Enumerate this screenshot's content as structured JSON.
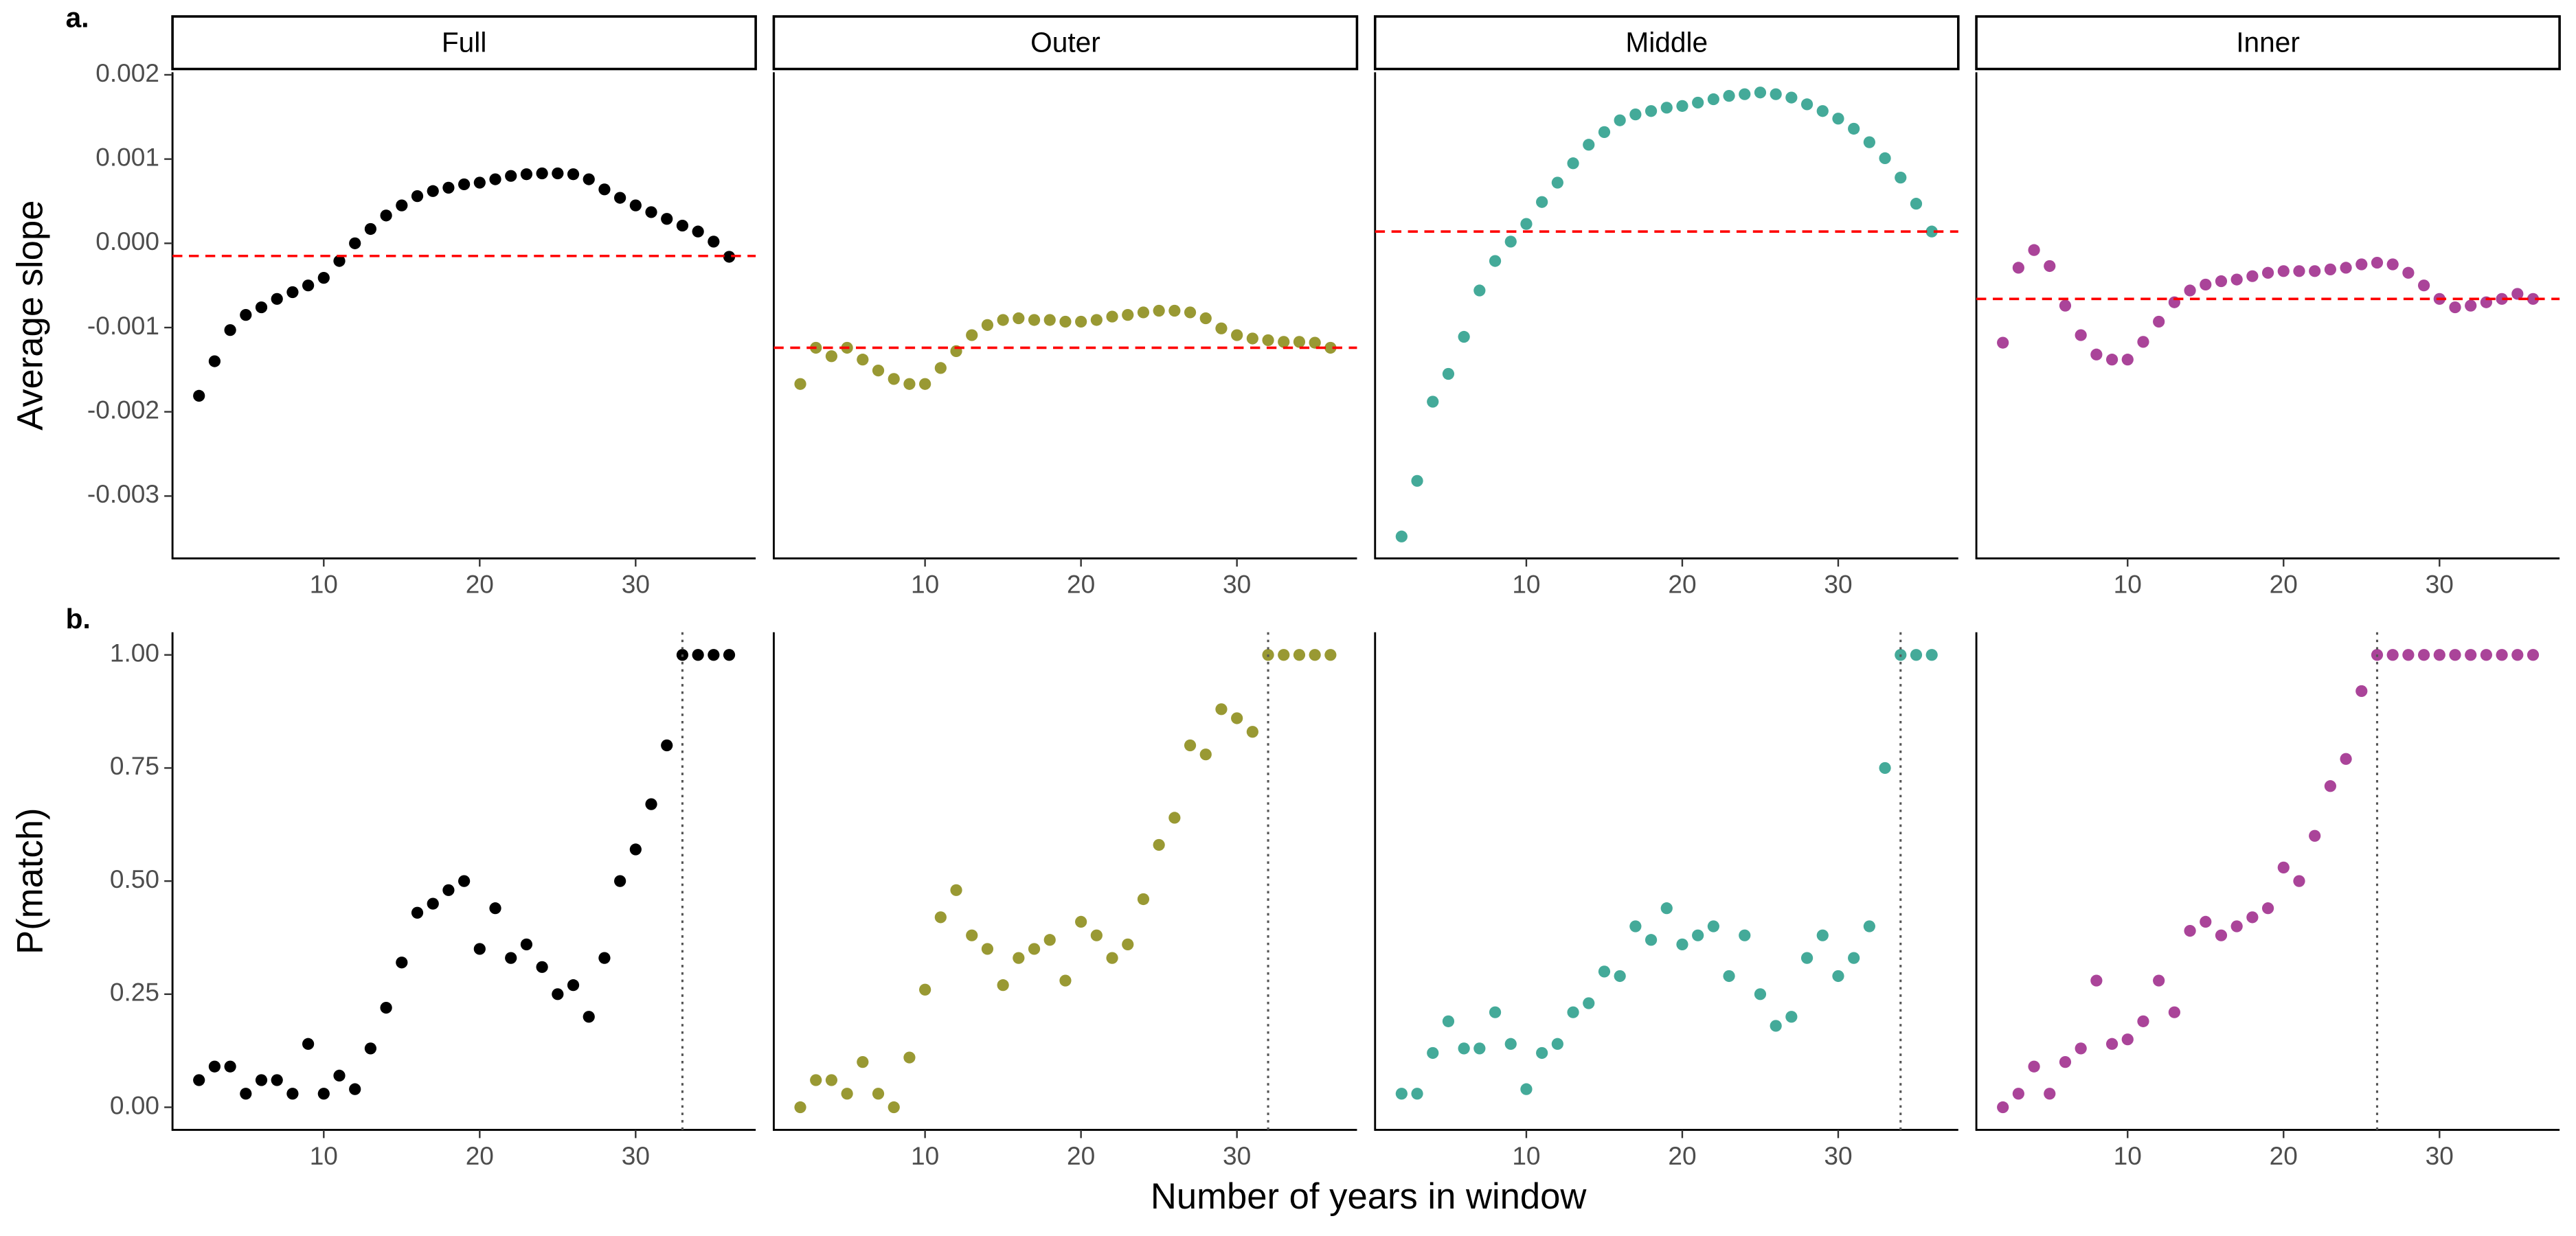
{
  "xlabel": "Number of years in window",
  "chart_data": [
    {
      "type": "scatter",
      "tag": "a.",
      "ylabel": "Average slope",
      "strip": "Full",
      "color": "#000000",
      "x": [
        2,
        3,
        4,
        5,
        6,
        7,
        8,
        9,
        10,
        11,
        12,
        13,
        14,
        15,
        16,
        17,
        18,
        19,
        20,
        21,
        22,
        23,
        24,
        25,
        26,
        27,
        28,
        29,
        30,
        31,
        32,
        33,
        34,
        35,
        36
      ],
      "values": [
        -0.00181,
        -0.0014,
        -0.00103,
        -0.00085,
        -0.00076,
        -0.00066,
        -0.00058,
        -0.0005,
        -0.00041,
        -0.00021,
        0,
        0.00017,
        0.00033,
        0.00045,
        0.00056,
        0.00062,
        0.00066,
        0.0007,
        0.00072,
        0.00076,
        0.0008,
        0.00082,
        0.00083,
        0.00083,
        0.00082,
        0.00076,
        0.00064,
        0.00054,
        0.00045,
        0.00037,
        0.00029,
        0.00021,
        0.00014,
        2e-05,
        -0.00016
      ],
      "hline": -0.00015,
      "ref_color": "#ff0000",
      "xlim": [
        0.3,
        37.7
      ],
      "ylim": [
        -0.00374,
        0.00203
      ],
      "xticks": [
        10,
        20,
        30
      ],
      "yticks": [
        {
          "value": 0.002,
          "label": "0.002"
        },
        {
          "value": 0.001,
          "label": "0.001"
        },
        {
          "value": 0,
          "label": "0.000"
        },
        {
          "value": -0.001,
          "label": "-0.001"
        },
        {
          "value": -0.002,
          "label": "-0.002"
        },
        {
          "value": -0.003,
          "label": "-0.003"
        }
      ]
    },
    {
      "type": "scatter",
      "strip": "Outer",
      "color": "#999933",
      "x": [
        2,
        3,
        4,
        5,
        6,
        7,
        8,
        9,
        10,
        11,
        12,
        13,
        14,
        15,
        16,
        17,
        18,
        19,
        20,
        21,
        22,
        23,
        24,
        25,
        26,
        27,
        28,
        29,
        30,
        31,
        32,
        33,
        34,
        35,
        36
      ],
      "values": [
        -0.00167,
        -0.00124,
        -0.00134,
        -0.00124,
        -0.00138,
        -0.00151,
        -0.00161,
        -0.00167,
        -0.00167,
        -0.00148,
        -0.00128,
        -0.00109,
        -0.00097,
        -0.00091,
        -0.00089,
        -0.00091,
        -0.00091,
        -0.00093,
        -0.00093,
        -0.00091,
        -0.00087,
        -0.00085,
        -0.00082,
        -0.0008,
        -0.0008,
        -0.00082,
        -0.00089,
        -0.00101,
        -0.00109,
        -0.00113,
        -0.00115,
        -0.00117,
        -0.00117,
        -0.00118,
        -0.00124
      ],
      "hline": -0.00124,
      "ref_color": "#ff0000",
      "xlim": [
        0.3,
        37.7
      ],
      "ylim": [
        -0.00374,
        0.00203
      ],
      "xticks": [
        10,
        20,
        30
      ]
    },
    {
      "type": "scatter",
      "strip": "Middle",
      "color": "#44aa99",
      "x": [
        2,
        3,
        4,
        5,
        6,
        7,
        8,
        9,
        10,
        11,
        12,
        13,
        14,
        15,
        16,
        17,
        18,
        19,
        20,
        21,
        22,
        23,
        24,
        25,
        26,
        27,
        28,
        29,
        30,
        31,
        32,
        33,
        34,
        35,
        36
      ],
      "values": [
        -0.00348,
        -0.00282,
        -0.00188,
        -0.00155,
        -0.00111,
        -0.00056,
        -0.00021,
        2e-05,
        0.00023,
        0.00049,
        0.00072,
        0.00095,
        0.00117,
        0.00132,
        0.00146,
        0.00153,
        0.00157,
        0.00161,
        0.00163,
        0.00167,
        0.00171,
        0.00175,
        0.00177,
        0.00179,
        0.00177,
        0.00173,
        0.00165,
        0.00157,
        0.00148,
        0.00136,
        0.0012,
        0.00101,
        0.00078,
        0.00047,
        0.00014
      ],
      "hline": 0.00014,
      "ref_color": "#ff0000",
      "xlim": [
        0.3,
        37.7
      ],
      "ylim": [
        -0.00374,
        0.00203
      ],
      "xticks": [
        10,
        20,
        30
      ]
    },
    {
      "type": "scatter",
      "strip": "Inner",
      "color": "#aa4499",
      "x": [
        2,
        3,
        4,
        5,
        6,
        7,
        8,
        9,
        10,
        11,
        12,
        13,
        14,
        15,
        16,
        17,
        18,
        19,
        20,
        21,
        22,
        23,
        24,
        25,
        26,
        27,
        28,
        29,
        30,
        31,
        32,
        33,
        34,
        35,
        36
      ],
      "values": [
        -0.00118,
        -0.00029,
        -8e-05,
        -0.00027,
        -0.00074,
        -0.00109,
        -0.00132,
        -0.00138,
        -0.00138,
        -0.00117,
        -0.00093,
        -0.0007,
        -0.00056,
        -0.00049,
        -0.00045,
        -0.00043,
        -0.00039,
        -0.00035,
        -0.00033,
        -0.00033,
        -0.00033,
        -0.00031,
        -0.00029,
        -0.00025,
        -0.00023,
        -0.00025,
        -0.00035,
        -0.0005,
        -0.00066,
        -0.00076,
        -0.00074,
        -0.0007,
        -0.00066,
        -0.0006,
        -0.00066
      ],
      "hline": -0.00066,
      "ref_color": "#ff0000",
      "xlim": [
        0.3,
        37.7
      ],
      "ylim": [
        -0.00374,
        0.00203
      ],
      "xticks": [
        10,
        20,
        30
      ]
    },
    {
      "type": "scatter",
      "tag": "b.",
      "ylabel": "P(match)",
      "color": "#000000",
      "x": [
        2,
        3,
        4,
        5,
        6,
        7,
        8,
        9,
        10,
        11,
        12,
        13,
        14,
        15,
        16,
        17,
        18,
        19,
        20,
        21,
        22,
        23,
        24,
        25,
        26,
        27,
        28,
        29,
        30,
        31,
        32,
        33,
        34,
        35,
        36
      ],
      "values": [
        0.06,
        0.09,
        0.09,
        0.03,
        0.06,
        0.06,
        0.03,
        0.14,
        0.03,
        0.07,
        0.04,
        0.13,
        0.22,
        0.32,
        0.43,
        0.45,
        0.48,
        0.5,
        0.35,
        0.44,
        0.33,
        0.36,
        0.31,
        0.25,
        0.27,
        0.2,
        0.33,
        0.5,
        0.57,
        0.67,
        0.8,
        1,
        1,
        1,
        1
      ],
      "vline": 33,
      "ref_color": "#555555",
      "xlim": [
        0.3,
        37.7
      ],
      "ylim": [
        -0.05,
        1.05
      ],
      "xticks": [
        10,
        20,
        30
      ],
      "yticks": [
        {
          "value": 0,
          "label": "0.00"
        },
        {
          "value": 0.25,
          "label": "0.25"
        },
        {
          "value": 0.5,
          "label": "0.50"
        },
        {
          "value": 0.75,
          "label": "0.75"
        },
        {
          "value": 1,
          "label": "1.00"
        }
      ]
    },
    {
      "type": "scatter",
      "color": "#999933",
      "x": [
        2,
        3,
        4,
        5,
        6,
        7,
        8,
        9,
        10,
        11,
        12,
        13,
        14,
        15,
        16,
        17,
        18,
        19,
        20,
        21,
        22,
        23,
        24,
        25,
        26,
        27,
        28,
        29,
        30,
        31,
        32,
        33,
        34,
        35,
        36
      ],
      "values": [
        0,
        0.06,
        0.06,
        0.03,
        0.1,
        0.03,
        0,
        0.11,
        0.26,
        0.42,
        0.48,
        0.38,
        0.35,
        0.27,
        0.33,
        0.35,
        0.37,
        0.28,
        0.41,
        0.38,
        0.33,
        0.36,
        0.46,
        0.58,
        0.64,
        0.8,
        0.78,
        0.88,
        0.86,
        0.83,
        1,
        1,
        1,
        1,
        1
      ],
      "vline": 32,
      "ref_color": "#555555",
      "xlim": [
        0.3,
        37.7
      ],
      "ylim": [
        -0.05,
        1.05
      ],
      "xticks": [
        10,
        20,
        30
      ]
    },
    {
      "type": "scatter",
      "color": "#44aa99",
      "x": [
        2,
        3,
        4,
        5,
        6,
        7,
        8,
        9,
        10,
        11,
        12,
        13,
        14,
        15,
        16,
        17,
        18,
        19,
        20,
        21,
        22,
        23,
        24,
        25,
        26,
        27,
        28,
        29,
        30,
        31,
        32,
        33,
        34,
        35,
        36
      ],
      "values": [
        0.03,
        0.03,
        0.12,
        0.19,
        0.13,
        0.13,
        0.21,
        0.14,
        0.04,
        0.12,
        0.14,
        0.21,
        0.23,
        0.3,
        0.29,
        0.4,
        0.37,
        0.44,
        0.36,
        0.38,
        0.4,
        0.29,
        0.38,
        0.25,
        0.18,
        0.2,
        0.33,
        0.38,
        0.29,
        0.33,
        0.4,
        0.75,
        1,
        1,
        1
      ],
      "vline": 34,
      "ref_color": "#555555",
      "xlim": [
        0.3,
        37.7
      ],
      "ylim": [
        -0.05,
        1.05
      ],
      "xticks": [
        10,
        20,
        30
      ]
    },
    {
      "type": "scatter",
      "color": "#aa4499",
      "x": [
        2,
        3,
        4,
        5,
        6,
        7,
        8,
        9,
        10,
        11,
        12,
        13,
        14,
        15,
        16,
        17,
        18,
        19,
        20,
        21,
        22,
        23,
        24,
        25,
        26,
        27,
        28,
        29,
        30,
        31,
        32,
        33,
        34,
        35,
        36
      ],
      "values": [
        0,
        0.03,
        0.09,
        0.03,
        0.1,
        0.13,
        0.28,
        0.14,
        0.15,
        0.19,
        0.28,
        0.21,
        0.39,
        0.41,
        0.38,
        0.4,
        0.42,
        0.44,
        0.53,
        0.5,
        0.6,
        0.71,
        0.77,
        0.92,
        1,
        1,
        1,
        1,
        1,
        1,
        1,
        1,
        1,
        1,
        1
      ],
      "vline": 26,
      "ref_color": "#555555",
      "xlim": [
        0.3,
        37.7
      ],
      "ylim": [
        -0.05,
        1.05
      ],
      "xticks": [
        10,
        20,
        30
      ]
    }
  ]
}
